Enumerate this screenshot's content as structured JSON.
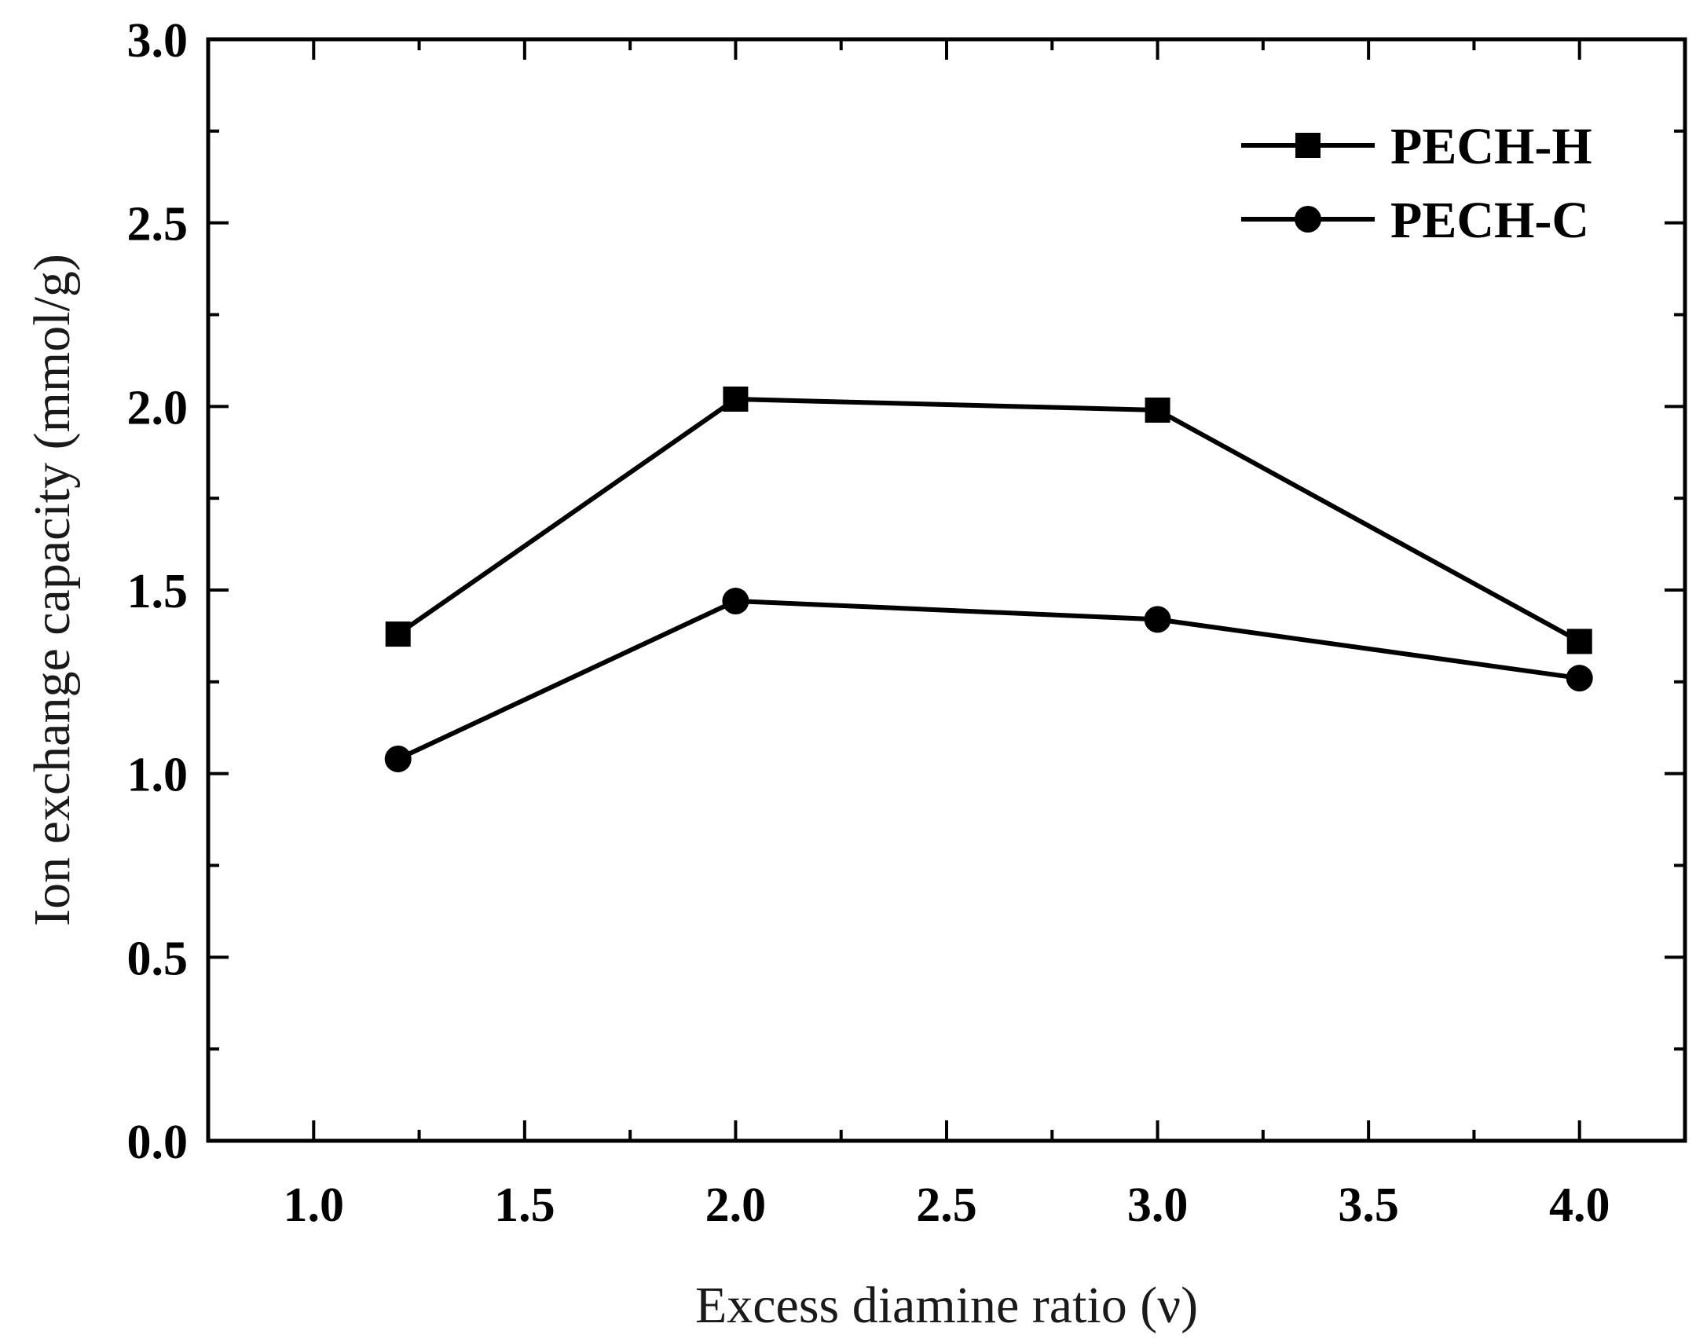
{
  "chart_data": {
    "type": "line",
    "title": "",
    "xlabel": "Excess diamine ratio (ν)",
    "ylabel": "Ion exchange capacity (mmol/g)",
    "xlim": [
      0.75,
      4.25
    ],
    "ylim": [
      0.0,
      3.0
    ],
    "x_ticks": [
      "1.0",
      "1.5",
      "2.0",
      "2.5",
      "3.0",
      "3.5",
      "4.0"
    ],
    "y_ticks": [
      "0.0",
      "0.5",
      "1.0",
      "1.5",
      "2.0",
      "2.5",
      "3.0"
    ],
    "x_minor_step": 0.25,
    "y_minor_step": 0.25,
    "grid": false,
    "legend_position": "top-right",
    "series": [
      {
        "name": "PECH-H",
        "marker": "square",
        "x": [
          1.2,
          2.0,
          3.0,
          4.0
        ],
        "y": [
          1.38,
          2.02,
          1.99,
          1.36
        ]
      },
      {
        "name": "PECH-C",
        "marker": "circle",
        "x": [
          1.2,
          2.0,
          3.0,
          4.0
        ],
        "y": [
          1.04,
          1.47,
          1.42,
          1.26
        ]
      }
    ],
    "colors": {
      "line": "#000000",
      "marker": "#000000",
      "axis": "#000000"
    }
  }
}
